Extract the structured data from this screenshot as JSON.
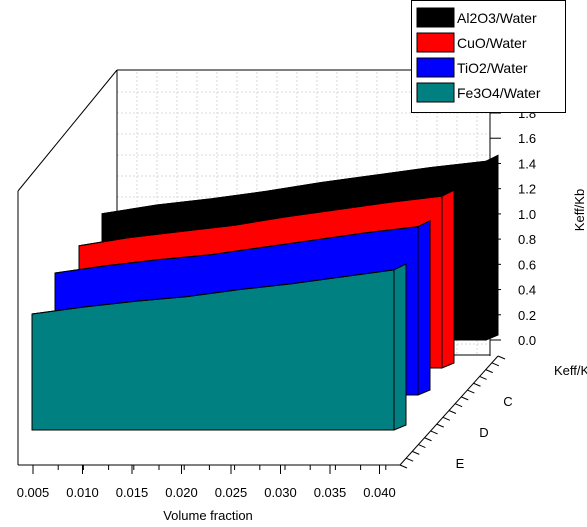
{
  "chart_data": {
    "type": "area",
    "title": "",
    "xlabel": "Volume fraction",
    "ylabel": "Keff/Kb",
    "x": [
      0.005,
      0.01,
      0.015,
      0.02,
      0.025,
      0.03,
      0.035,
      0.04
    ],
    "xlim": [
      0.005,
      0.04
    ],
    "ylim": [
      0.0,
      1.8
    ],
    "x_ticks": [
      "0.005",
      "0.010",
      "0.015",
      "0.020",
      "0.025",
      "0.030",
      "0.035",
      "0.040"
    ],
    "y_ticks": [
      "0.0",
      "0.2",
      "0.4",
      "0.6",
      "0.8",
      "1.0",
      "1.2",
      "1.4",
      "1.6",
      "1.8"
    ],
    "depth_labels": [
      "Keff/Kbf",
      "C",
      "D",
      "E"
    ],
    "legend_position": "top-right",
    "grid": true,
    "series": [
      {
        "name": "Al2O3/Water",
        "color": "#000000",
        "values": [
          1.01,
          1.08,
          1.13,
          1.19,
          1.26,
          1.32,
          1.38,
          1.43
        ]
      },
      {
        "name": "CuO/Water",
        "color": "#ff0000",
        "values": [
          1.01,
          1.08,
          1.13,
          1.18,
          1.25,
          1.31,
          1.37,
          1.42
        ]
      },
      {
        "name": "TiO2/Water",
        "color": "#0000ff",
        "values": [
          1.0,
          1.06,
          1.11,
          1.15,
          1.21,
          1.27,
          1.33,
          1.38
        ]
      },
      {
        "name": "Fe3O4/Water",
        "color": "#008080",
        "values": [
          1.0,
          1.06,
          1.11,
          1.15,
          1.21,
          1.26,
          1.32,
          1.38
        ]
      }
    ]
  }
}
